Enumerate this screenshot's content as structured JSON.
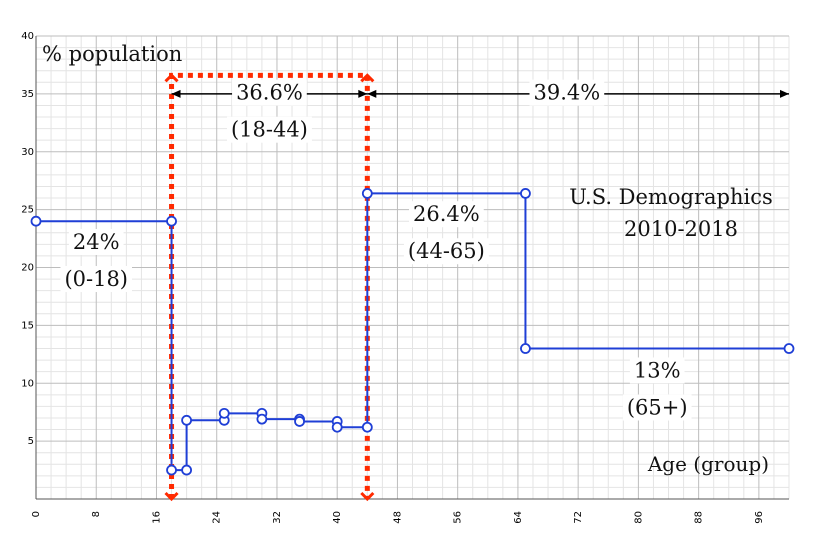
{
  "chart_data": {
    "type": "line",
    "step": true,
    "ylabel": "% population",
    "xlabel": "Age (group)",
    "title_lines": [
      "U.S. Demographics",
      "2010-2018"
    ],
    "xlim": [
      0,
      100
    ],
    "ylim": [
      0,
      40
    ],
    "x_ticks": [
      0,
      8,
      16,
      24,
      32,
      40,
      48,
      56,
      64,
      72,
      80,
      88,
      96
    ],
    "y_ticks": [
      5,
      10,
      15,
      20,
      25,
      30,
      35,
      40
    ],
    "grid": true,
    "series": [
      {
        "color": "#1f3fd6",
        "points": [
          [
            0,
            24
          ],
          [
            18,
            24
          ],
          [
            18,
            2.5
          ],
          [
            20,
            2.5
          ],
          [
            20,
            6.8
          ],
          [
            25,
            6.8
          ],
          [
            25,
            7.4
          ],
          [
            30,
            7.4
          ],
          [
            30,
            6.9
          ],
          [
            35,
            6.9
          ],
          [
            35,
            6.7
          ],
          [
            40,
            6.7
          ],
          [
            40,
            6.2
          ],
          [
            44,
            6.2
          ],
          [
            44,
            26.4
          ],
          [
            65,
            26.4
          ],
          [
            65,
            13
          ],
          [
            100,
            13
          ]
        ]
      }
    ],
    "annotations": [
      {
        "text": "24%",
        "x": 8,
        "y": 21.6
      },
      {
        "text": "(0-18)",
        "x": 8,
        "y": 18.4
      },
      {
        "text": "36.6%",
        "x": 31,
        "y": 34.5
      },
      {
        "text": "(18-44)",
        "x": 31,
        "y": 31.3
      },
      {
        "text": "39.4%",
        "x": 70.5,
        "y": 34.5
      },
      {
        "text": "26.4%",
        "x": 54.5,
        "y": 24
      },
      {
        "text": "(44-65)",
        "x": 54.5,
        "y": 20.8
      },
      {
        "text": "13%",
        "x": 82.5,
        "y": 10.5
      },
      {
        "text": "(65+)",
        "x": 82.5,
        "y": 7.3
      }
    ],
    "range_arrows": [
      {
        "from": 18,
        "to": 44,
        "y": 35,
        "color": "#000000"
      },
      {
        "from": 44,
        "to": 100,
        "y": 35,
        "color": "#000000"
      }
    ],
    "highlight_box": {
      "x": [
        18,
        44
      ],
      "y": [
        0,
        36.6
      ],
      "color": "#ff2a00"
    }
  }
}
